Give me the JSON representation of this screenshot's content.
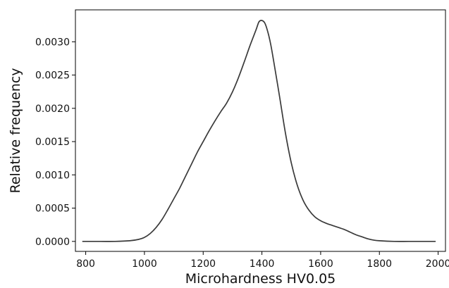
{
  "chart_data": {
    "type": "line",
    "title": "",
    "xlabel": "Microhardness HV0.05",
    "ylabel": "Relative frequency",
    "xlim": [
      765,
      2025
    ],
    "ylim": [
      -0.00015,
      0.00348
    ],
    "x_ticks": [
      800,
      1000,
      1200,
      1400,
      1600,
      1800,
      2000
    ],
    "x_tick_labels": [
      "800",
      "1000",
      "1200",
      "1400",
      "1600",
      "1800",
      "2000"
    ],
    "y_ticks": [
      0,
      0.0005,
      0.001,
      0.0015,
      0.002,
      0.0025,
      0.003
    ],
    "y_tick_labels": [
      "0.0000",
      "0.0005",
      "0.0010",
      "0.0015",
      "0.0020",
      "0.0025",
      "0.0030"
    ],
    "grid": false,
    "legend": "none",
    "series": [
      {
        "color": "#3a3a3a",
        "x": [
          790,
          850,
          900,
          950,
          980,
          1000,
          1020,
          1040,
          1060,
          1080,
          1100,
          1120,
          1140,
          1160,
          1180,
          1200,
          1220,
          1240,
          1260,
          1280,
          1300,
          1320,
          1340,
          1360,
          1380,
          1390,
          1400,
          1410,
          1420,
          1430,
          1440,
          1460,
          1480,
          1500,
          1520,
          1540,
          1560,
          1580,
          1600,
          1620,
          1640,
          1660,
          1680,
          1700,
          1720,
          1740,
          1760,
          1780,
          1800,
          1850,
          1900,
          1950,
          1990
        ],
        "y": [
          0,
          0,
          0,
          1e-05,
          3e-05,
          6e-05,
          0.00012,
          0.00021,
          0.00033,
          0.00048,
          0.00064,
          0.0008,
          0.00098,
          0.00116,
          0.00134,
          0.0015,
          0.00166,
          0.00181,
          0.00195,
          0.00208,
          0.00225,
          0.00246,
          0.0027,
          0.00295,
          0.00318,
          0.0033,
          0.00332,
          0.00328,
          0.00315,
          0.00296,
          0.00271,
          0.00218,
          0.00163,
          0.00118,
          0.00085,
          0.00062,
          0.00047,
          0.00037,
          0.00031,
          0.00027,
          0.00024,
          0.00021,
          0.00018,
          0.00014,
          0.0001,
          7e-05,
          4e-05,
          2e-05,
          1e-05,
          0,
          0,
          0,
          0
        ]
      }
    ]
  }
}
